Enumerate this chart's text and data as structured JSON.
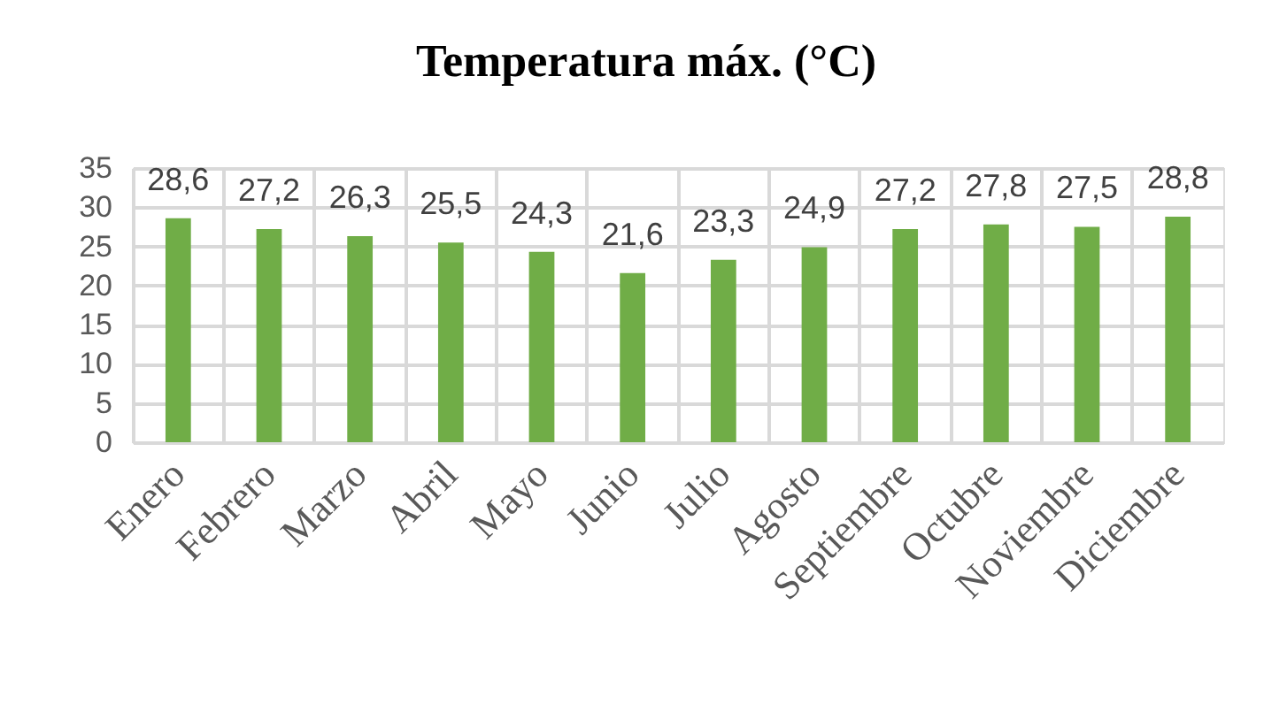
{
  "chart_data": {
    "type": "bar",
    "title": "Temperatura máx. (°C)",
    "categories": [
      "Enero",
      "Febrero",
      "Marzo",
      "Abril",
      "Mayo",
      "Junio",
      "Julio",
      "Agosto",
      "Septiembre",
      "Octubre",
      "Noviembre",
      "Diciembre"
    ],
    "values": [
      28.6,
      27.2,
      26.3,
      25.5,
      24.3,
      21.6,
      23.3,
      24.9,
      27.2,
      27.8,
      27.5,
      28.8
    ],
    "value_labels": [
      "28,6",
      "27,2",
      "26,3",
      "25,5",
      "24,3",
      "21,6",
      "23,3",
      "24,9",
      "27,2",
      "27,8",
      "27,5",
      "28,8"
    ],
    "color": "#70ad47",
    "ylim": [
      0,
      35
    ],
    "yticks": [
      0,
      5,
      10,
      15,
      20,
      25,
      30,
      35
    ],
    "grid": true
  }
}
